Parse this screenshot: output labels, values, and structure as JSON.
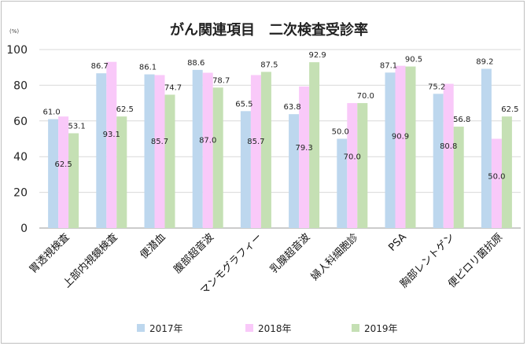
{
  "chart_data": {
    "type": "bar",
    "title": "がん関連項目　二次検査受診率",
    "unit_label": "(%)",
    "ylim": [
      0,
      100
    ],
    "yticks": [
      "0",
      "20",
      "40",
      "60",
      "80",
      "100"
    ],
    "grid": true,
    "legend_position": "bottom",
    "categories": [
      "胃透視検査",
      "上部内視鏡検査",
      "便潜血",
      "腹部超音波",
      "マンモグラフィー",
      "乳腺超音波",
      "婦人科細胞診",
      "PSA",
      "胸部レントゲン",
      "便ピロリ菌抗原"
    ],
    "series": [
      {
        "name": "2017年",
        "color": "#bdd7ee",
        "values": [
          61.0,
          86.7,
          86.1,
          88.6,
          65.5,
          63.8,
          50.0,
          87.1,
          75.2,
          89.2
        ],
        "labels": [
          "61.0",
          "86.7",
          "86.1",
          "88.6",
          "65.5",
          "63.8",
          "50.0",
          "87.1",
          "75.2",
          "89.2"
        ]
      },
      {
        "name": "2018年",
        "color": "#f9c9f9",
        "values": [
          62.5,
          93.1,
          85.7,
          87.0,
          85.7,
          79.3,
          70.0,
          90.9,
          80.8,
          50.0
        ],
        "labels": [
          "62.5",
          "93.1",
          "85.7",
          "87.0",
          "85.7",
          "79.3",
          "70.0",
          "90.9",
          "80.8",
          "50.0"
        ]
      },
      {
        "name": "2019年",
        "color": "#c5e0b4",
        "values": [
          53.1,
          62.5,
          74.7,
          78.7,
          87.5,
          92.9,
          70.0,
          90.5,
          56.8,
          62.5
        ],
        "labels": [
          "53.1",
          "62.5",
          "74.7",
          "78.7",
          "87.5",
          "92.9",
          "70.0",
          "90.5",
          "56.8",
          "62.5"
        ]
      }
    ]
  }
}
